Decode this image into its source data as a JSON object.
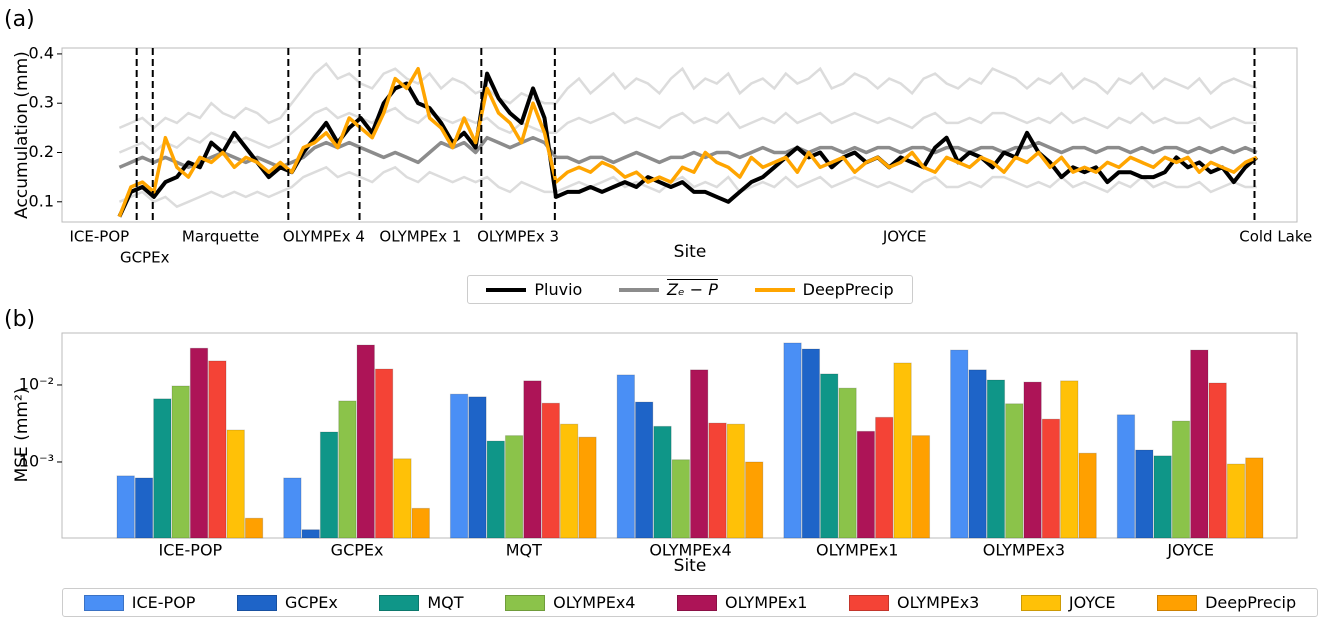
{
  "chart_data": [
    {
      "type": "line",
      "label": "(a)",
      "ylabel": "Accumulation (mm)",
      "xlabel": "Site",
      "xlim": [
        -5,
        102.5
      ],
      "ylim": [
        0.059,
        0.412
      ],
      "yticks": [
        0.1,
        0.2,
        0.3,
        0.4
      ],
      "sites": [
        {
          "name": "ICE-POP"
        },
        {
          "name": "GCPEx",
          "start": 1.5
        },
        {
          "name": "Marquette",
          "start": 2.9
        },
        {
          "name": "OLYMPEx 4",
          "start": 14.7
        },
        {
          "name": "OLYMPEx 1",
          "start": 20.9
        },
        {
          "name": "OLYMPEx 3",
          "start": 31.5
        },
        {
          "name": "JOYCE",
          "start": 37.9
        },
        {
          "name": "Cold Lake",
          "start": 98.8
        }
      ],
      "background_series": [
        {
          "color": "#dcdcdc",
          "values": [
            0.25,
            0.26,
            0.27,
            0.25,
            0.27,
            0.26,
            0.28,
            0.27,
            0.3,
            0.28,
            0.27,
            0.29,
            0.28,
            0.26,
            0.27,
            0.3,
            0.33,
            0.36,
            0.38,
            0.35,
            0.36,
            0.34,
            0.33,
            0.36,
            0.37,
            0.35,
            0.34,
            0.36,
            0.33,
            0.35,
            0.34,
            0.32,
            0.33,
            0.31,
            0.3,
            0.32,
            0.31,
            0.3,
            0.3,
            0.33,
            0.35,
            0.32,
            0.34,
            0.36,
            0.33,
            0.35,
            0.34,
            0.32,
            0.35,
            0.37,
            0.33,
            0.35,
            0.34,
            0.36,
            0.32,
            0.34,
            0.35,
            0.33,
            0.36,
            0.34,
            0.35,
            0.37,
            0.33,
            0.34,
            0.36,
            0.35,
            0.33,
            0.35,
            0.34,
            0.32,
            0.35,
            0.36,
            0.34,
            0.33,
            0.35,
            0.34,
            0.37,
            0.36,
            0.35,
            0.33,
            0.35,
            0.34,
            0.36,
            0.33,
            0.35,
            0.34,
            0.32,
            0.35,
            0.34,
            0.36,
            0.33,
            0.35,
            0.34,
            0.33,
            0.35,
            0.32,
            0.34,
            0.35,
            0.34,
            0.33
          ]
        },
        {
          "color": "#dcdcdc",
          "values": [
            0.2,
            0.21,
            0.22,
            0.2,
            0.22,
            0.21,
            0.23,
            0.22,
            0.24,
            0.23,
            0.22,
            0.23,
            0.22,
            0.21,
            0.22,
            0.24,
            0.26,
            0.28,
            0.29,
            0.27,
            0.28,
            0.27,
            0.26,
            0.28,
            0.29,
            0.27,
            0.26,
            0.28,
            0.27,
            0.26,
            0.27,
            0.26,
            0.27,
            0.25,
            0.24,
            0.26,
            0.25,
            0.24,
            0.24,
            0.26,
            0.27,
            0.26,
            0.27,
            0.28,
            0.26,
            0.27,
            0.26,
            0.25,
            0.27,
            0.28,
            0.26,
            0.27,
            0.26,
            0.28,
            0.25,
            0.26,
            0.27,
            0.26,
            0.28,
            0.26,
            0.27,
            0.28,
            0.26,
            0.27,
            0.28,
            0.27,
            0.26,
            0.27,
            0.26,
            0.25,
            0.27,
            0.28,
            0.26,
            0.26,
            0.27,
            0.26,
            0.28,
            0.28,
            0.27,
            0.26,
            0.27,
            0.26,
            0.28,
            0.26,
            0.27,
            0.26,
            0.25,
            0.27,
            0.26,
            0.28,
            0.26,
            0.27,
            0.26,
            0.26,
            0.27,
            0.25,
            0.26,
            0.27,
            0.26,
            0.26
          ]
        },
        {
          "color": "#dcdcdc",
          "values": [
            0.1,
            0.11,
            0.12,
            0.1,
            0.11,
            0.09,
            0.1,
            0.11,
            0.12,
            0.11,
            0.12,
            0.11,
            0.12,
            0.11,
            0.12,
            0.13,
            0.15,
            0.16,
            0.17,
            0.15,
            0.16,
            0.15,
            0.14,
            0.16,
            0.17,
            0.15,
            0.14,
            0.16,
            0.15,
            0.14,
            0.15,
            0.14,
            0.15,
            0.13,
            0.12,
            0.14,
            0.13,
            0.12,
            0.12,
            0.13,
            0.14,
            0.13,
            0.14,
            0.15,
            0.13,
            0.14,
            0.13,
            0.12,
            0.14,
            0.15,
            0.13,
            0.14,
            0.13,
            0.15,
            0.12,
            0.13,
            0.14,
            0.13,
            0.15,
            0.13,
            0.14,
            0.15,
            0.13,
            0.14,
            0.15,
            0.14,
            0.13,
            0.14,
            0.13,
            0.12,
            0.14,
            0.15,
            0.13,
            0.13,
            0.14,
            0.13,
            0.15,
            0.15,
            0.14,
            0.13,
            0.14,
            0.13,
            0.15,
            0.13,
            0.14,
            0.13,
            0.12,
            0.14,
            0.13,
            0.15,
            0.13,
            0.14,
            0.13,
            0.13,
            0.14,
            0.12,
            0.13,
            0.14,
            0.13,
            0.13
          ]
        }
      ],
      "series": [
        {
          "name": "Pluvio",
          "color": "#000000",
          "values": [
            0.07,
            0.12,
            0.13,
            0.11,
            0.14,
            0.15,
            0.18,
            0.17,
            0.22,
            0.2,
            0.24,
            0.21,
            0.18,
            0.15,
            0.17,
            0.16,
            0.2,
            0.23,
            0.26,
            0.22,
            0.25,
            0.27,
            0.24,
            0.3,
            0.33,
            0.34,
            0.3,
            0.29,
            0.26,
            0.22,
            0.24,
            0.21,
            0.36,
            0.31,
            0.28,
            0.26,
            0.33,
            0.27,
            0.11,
            0.12,
            0.12,
            0.13,
            0.12,
            0.13,
            0.14,
            0.13,
            0.15,
            0.14,
            0.13,
            0.14,
            0.12,
            0.12,
            0.11,
            0.1,
            0.12,
            0.14,
            0.15,
            0.17,
            0.19,
            0.21,
            0.19,
            0.2,
            0.17,
            0.19,
            0.2,
            0.18,
            0.19,
            0.17,
            0.19,
            0.18,
            0.17,
            0.21,
            0.23,
            0.18,
            0.2,
            0.19,
            0.17,
            0.2,
            0.19,
            0.24,
            0.2,
            0.18,
            0.15,
            0.17,
            0.16,
            0.17,
            0.14,
            0.16,
            0.16,
            0.15,
            0.15,
            0.16,
            0.19,
            0.17,
            0.18,
            0.16,
            0.17,
            0.14,
            0.17,
            0.19
          ]
        },
        {
          "name": "Zₑ − P",
          "color": "#8c8c8c",
          "values": [
            0.17,
            0.18,
            0.19,
            0.18,
            0.19,
            0.18,
            0.17,
            0.18,
            0.19,
            0.2,
            0.19,
            0.18,
            0.19,
            0.18,
            0.17,
            0.18,
            0.19,
            0.21,
            0.22,
            0.21,
            0.22,
            0.21,
            0.2,
            0.19,
            0.2,
            0.19,
            0.18,
            0.2,
            0.22,
            0.21,
            0.22,
            0.2,
            0.23,
            0.22,
            0.21,
            0.22,
            0.23,
            0.22,
            0.19,
            0.19,
            0.18,
            0.19,
            0.19,
            0.18,
            0.19,
            0.2,
            0.19,
            0.18,
            0.19,
            0.19,
            0.2,
            0.19,
            0.2,
            0.2,
            0.19,
            0.2,
            0.21,
            0.2,
            0.2,
            0.21,
            0.2,
            0.21,
            0.21,
            0.2,
            0.21,
            0.2,
            0.21,
            0.21,
            0.2,
            0.21,
            0.21,
            0.2,
            0.21,
            0.21,
            0.2,
            0.21,
            0.21,
            0.2,
            0.21,
            0.21,
            0.22,
            0.21,
            0.2,
            0.21,
            0.21,
            0.2,
            0.21,
            0.21,
            0.2,
            0.21,
            0.2,
            0.21,
            0.21,
            0.2,
            0.21,
            0.2,
            0.21,
            0.2,
            0.21,
            0.2
          ]
        },
        {
          "name": "DeepPrecip",
          "color": "#ffa500",
          "values": [
            0.07,
            0.13,
            0.14,
            0.12,
            0.23,
            0.17,
            0.15,
            0.19,
            0.18,
            0.2,
            0.17,
            0.19,
            0.18,
            0.16,
            0.18,
            0.16,
            0.21,
            0.22,
            0.24,
            0.21,
            0.27,
            0.25,
            0.23,
            0.28,
            0.35,
            0.33,
            0.37,
            0.27,
            0.25,
            0.21,
            0.27,
            0.22,
            0.33,
            0.28,
            0.26,
            0.22,
            0.3,
            0.24,
            0.14,
            0.16,
            0.17,
            0.16,
            0.18,
            0.17,
            0.15,
            0.16,
            0.14,
            0.15,
            0.14,
            0.17,
            0.16,
            0.2,
            0.18,
            0.17,
            0.15,
            0.19,
            0.17,
            0.18,
            0.19,
            0.16,
            0.2,
            0.17,
            0.18,
            0.19,
            0.16,
            0.18,
            0.19,
            0.17,
            0.18,
            0.2,
            0.17,
            0.16,
            0.19,
            0.18,
            0.17,
            0.19,
            0.18,
            0.16,
            0.19,
            0.18,
            0.2,
            0.17,
            0.19,
            0.16,
            0.17,
            0.16,
            0.18,
            0.17,
            0.19,
            0.18,
            0.17,
            0.19,
            0.18,
            0.19,
            0.16,
            0.18,
            0.17,
            0.16,
            0.18,
            0.19
          ]
        }
      ]
    },
    {
      "type": "bar",
      "label": "(b)",
      "ylabel": "MSE (mm²)",
      "xlabel": "Site",
      "log_scale": true,
      "ylim": [
        0.000103,
        0.0473
      ],
      "yticks": [
        {
          "value": 0.01,
          "label": "10⁻²"
        },
        {
          "value": 0.001,
          "label": "10⁻³"
        }
      ],
      "categories": [
        "ICE-POP",
        "GCPEx",
        "MQT",
        "OLYMPEx4",
        "OLYMPEx1",
        "OLYMPEx3",
        "JOYCE"
      ],
      "series": [
        {
          "name": "ICE-POP",
          "color": "#4a8ff5",
          "values": [
            0.00066,
            0.00062,
            0.0076,
            0.0135,
            0.0351,
            0.0284,
            0.0041
          ]
        },
        {
          "name": "GCPEx",
          "color": "#1e64c8",
          "values": [
            0.00062,
            0.000132,
            0.007,
            0.006,
            0.0293,
            0.0157,
            0.00143
          ]
        },
        {
          "name": "MQT",
          "color": "#0f9688",
          "values": [
            0.0066,
            0.00245,
            0.00187,
            0.0029,
            0.0139,
            0.0116,
            0.0012
          ]
        },
        {
          "name": "OLYMPEx4",
          "color": "#8bc34a",
          "values": [
            0.0097,
            0.0062,
            0.0022,
            0.00107,
            0.0091,
            0.0057,
            0.0034
          ]
        },
        {
          "name": "OLYMPEx1",
          "color": "#ad1457",
          "values": [
            0.03,
            0.033,
            0.0113,
            0.0157,
            0.0025,
            0.0109,
            0.0284
          ]
        },
        {
          "name": "OLYMPEx3",
          "color": "#f44336",
          "values": [
            0.0205,
            0.0161,
            0.0058,
            0.0032,
            0.0038,
            0.0036,
            0.0106
          ]
        },
        {
          "name": "JOYCE",
          "color": "#ffc107",
          "values": [
            0.0026,
            0.0011,
            0.0031,
            0.0031,
            0.0193,
            0.0113,
            0.00094
          ]
        },
        {
          "name": "DeepPrecip",
          "color": "#ffa000",
          "values": [
            0.000186,
            0.00025,
            0.0021,
            0.001,
            0.0022,
            0.0013,
            0.00113
          ]
        }
      ]
    }
  ]
}
